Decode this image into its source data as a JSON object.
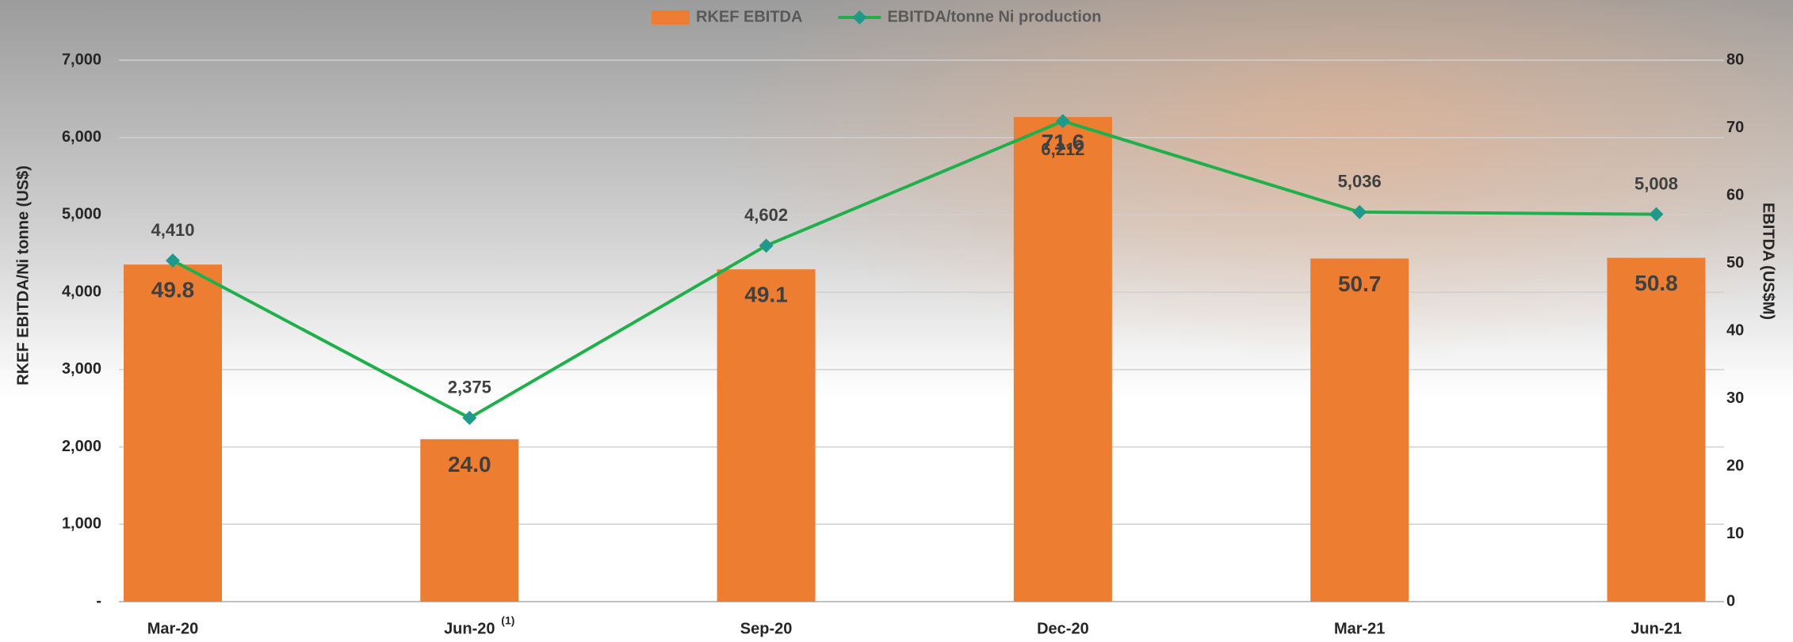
{
  "chart_data": {
    "type": "bar",
    "categories": [
      "Mar-20",
      "Jun-20",
      "Sep-20",
      "Dec-20",
      "Mar-21",
      "Jun-21"
    ],
    "category_superscripts": [
      null,
      "(1)",
      null,
      null,
      null,
      null
    ],
    "series": [
      {
        "name": "RKEF EBITDA",
        "type": "bar",
        "axis": "y2",
        "color": "#ed7d31",
        "values": [
          49.8,
          24.0,
          49.1,
          71.6,
          50.7,
          50.8
        ],
        "value_labels": [
          "49.8",
          "24.0",
          "49.1",
          "71.6",
          "50.7",
          "50.8"
        ]
      },
      {
        "name": "EBITDA/tonne Ni production",
        "type": "line",
        "axis": "y",
        "color": "#1fb04b",
        "marker_color": "#1f9a8a",
        "values": [
          4410,
          2375,
          4602,
          6212,
          5036,
          5008
        ],
        "value_labels": [
          "4,410",
          "2,375",
          "4,602",
          "6,212",
          "5,036",
          "5,008"
        ]
      }
    ],
    "ylabel": "RKEF EBITDA/Ni tonne  (US$)",
    "y2label": "EBITDA (US$M)",
    "ylim": [
      0,
      7000
    ],
    "yticks": [
      {
        "value": 0,
        "label": "-"
      },
      {
        "value": 1000,
        "label": "1,000"
      },
      {
        "value": 2000,
        "label": "2,000"
      },
      {
        "value": 3000,
        "label": "3,000"
      },
      {
        "value": 4000,
        "label": "4,000"
      },
      {
        "value": 5000,
        "label": "5,000"
      },
      {
        "value": 6000,
        "label": "6,000"
      },
      {
        "value": 7000,
        "label": "7,000"
      }
    ],
    "y2lim": [
      0,
      80
    ],
    "y2ticks": [
      0,
      10,
      20,
      30,
      40,
      50,
      60,
      70,
      80
    ],
    "grid": true,
    "legend": "top"
  }
}
